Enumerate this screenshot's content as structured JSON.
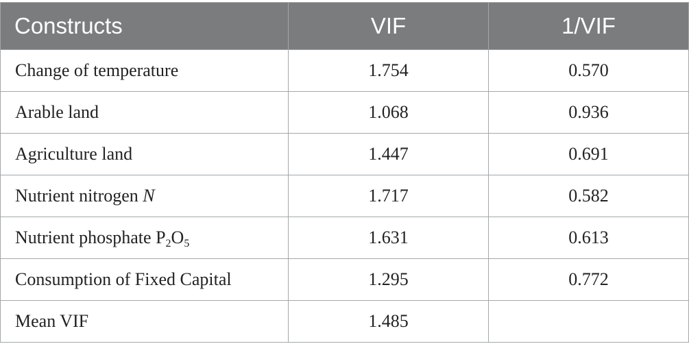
{
  "table": {
    "headers": [
      "Constructs",
      "VIF",
      "1/VIF"
    ],
    "rows": [
      {
        "construct": "Change of temperature",
        "vif": "1.754",
        "inv_vif": "0.570"
      },
      {
        "construct": "Arable land",
        "vif": "1.068",
        "inv_vif": "0.936"
      },
      {
        "construct": "Agriculture land",
        "vif": "1.447",
        "inv_vif": "0.691"
      },
      {
        "construct_prefix": "Nutrient nitrogen ",
        "construct_italic": "N",
        "vif": "1.717",
        "inv_vif": "0.582"
      },
      {
        "construct_prefix": "Nutrient phosphate P",
        "sub1": "2",
        "mid": "O",
        "sub2": "5",
        "vif": "1.631",
        "inv_vif": "0.613"
      },
      {
        "construct": "Consumption of Fixed Capital",
        "vif": "1.295",
        "inv_vif": "0.772"
      },
      {
        "construct": "Mean VIF",
        "vif": "1.485",
        "inv_vif": ""
      }
    ]
  }
}
